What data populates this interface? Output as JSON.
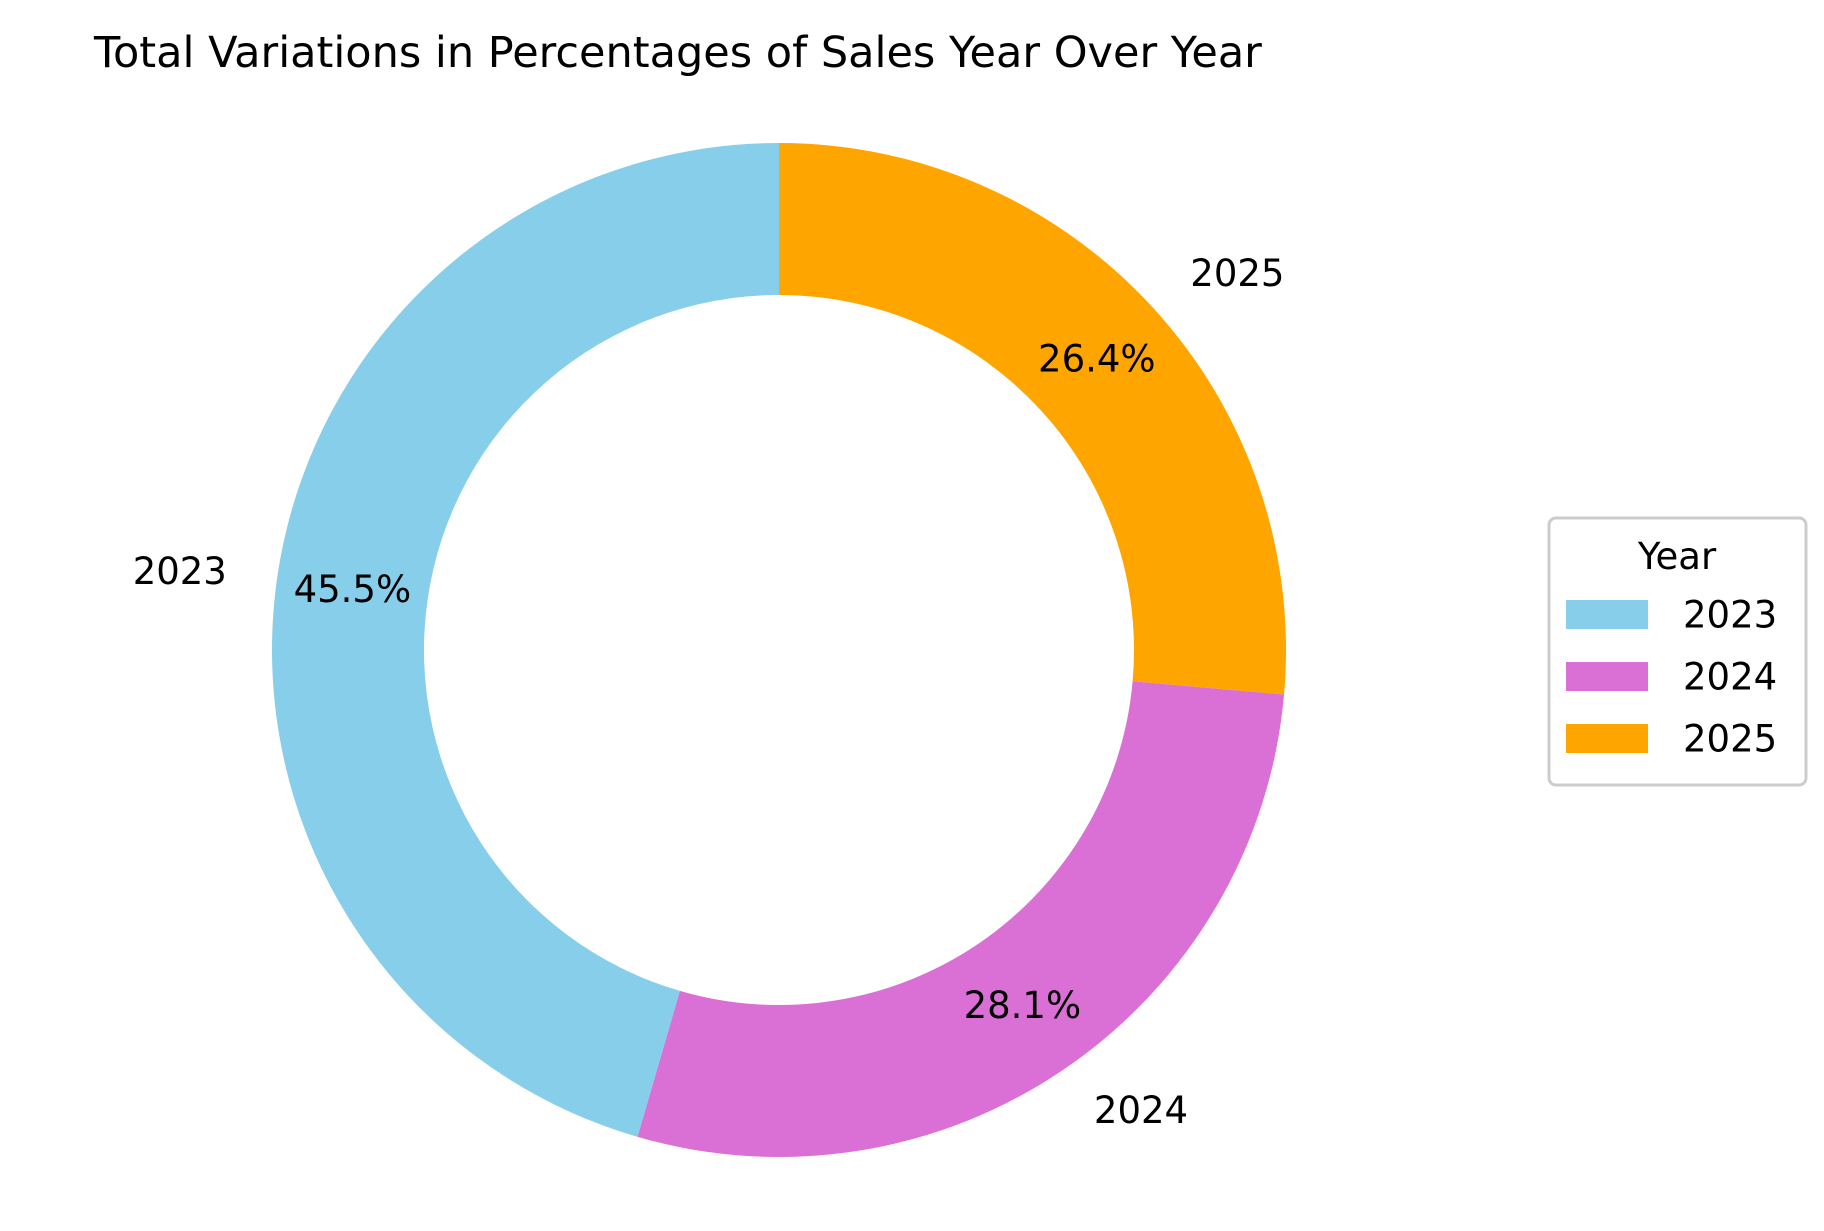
{
  "chart_data": {
    "type": "pie",
    "subtype": "donut",
    "title": "Total Variations in Percentages of Sales Year Over Year",
    "categories": [
      "2023",
      "2024",
      "2025"
    ],
    "values": [
      45.5,
      28.1,
      26.4
    ],
    "value_labels": [
      "45.5%",
      "28.1%",
      "26.4%"
    ],
    "colors": [
      "#87CEEB",
      "#DA70D6",
      "#FFA500"
    ],
    "start_angle_deg": 90,
    "direction": "counterclockwise",
    "legend": {
      "title": "Year",
      "placement": "right",
      "entries": [
        "2023",
        "2024",
        "2025"
      ]
    }
  }
}
